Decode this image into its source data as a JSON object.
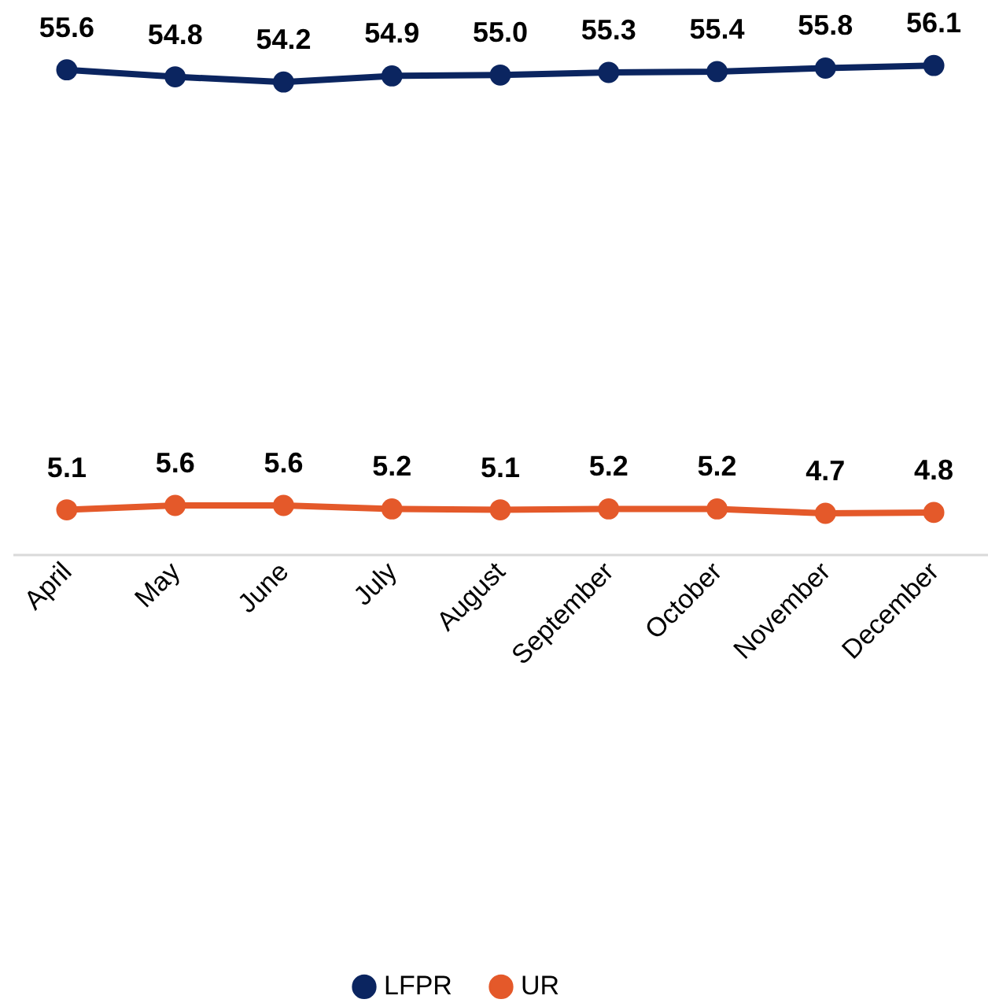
{
  "chart_data": {
    "type": "line",
    "categories": [
      "April",
      "May",
      "June",
      "July",
      "August",
      "September",
      "October",
      "November",
      "December"
    ],
    "series": [
      {
        "name": "LFPR",
        "color": "#0b2560",
        "values": [
          55.6,
          54.8,
          54.2,
          54.9,
          55.0,
          55.3,
          55.4,
          55.8,
          56.1
        ],
        "value_labels": [
          "55.6",
          "54.8",
          "54.2",
          "54.9",
          "55.0",
          "55.3",
          "55.4",
          "55.8",
          "56.1"
        ]
      },
      {
        "name": "UR",
        "color": "#e4592a",
        "values": [
          5.1,
          5.6,
          5.6,
          5.2,
          5.1,
          5.2,
          5.2,
          4.7,
          4.8
        ],
        "value_labels": [
          "5.1",
          "5.6",
          "5.6",
          "5.2",
          "5.1",
          "5.2",
          "5.2",
          "4.7",
          "4.8"
        ]
      }
    ],
    "tick_labels": "x",
    "marker": "circle",
    "grid": false,
    "legend": "bottom"
  }
}
